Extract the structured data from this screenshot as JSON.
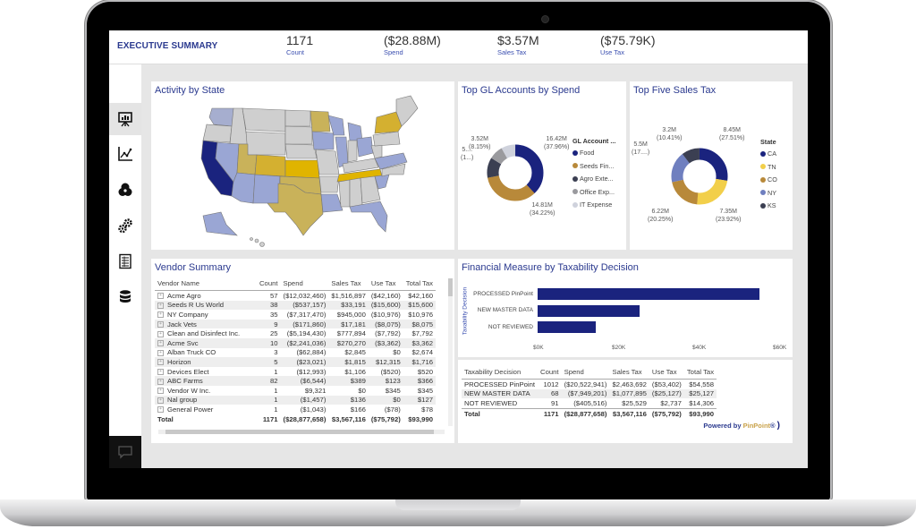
{
  "header": {
    "title": "EXECUTIVE SUMMARY",
    "kpis": [
      {
        "value": "1171",
        "label": "Count"
      },
      {
        "value": "($28.88M)",
        "label": "Spend"
      },
      {
        "value": "$3.57M",
        "label": "Sales Tax"
      },
      {
        "value": "($75.79K)",
        "label": "Use Tax"
      }
    ]
  },
  "sidebar": {
    "items": [
      {
        "icon": "presentation-chart-icon",
        "active": true
      },
      {
        "icon": "line-chart-icon"
      },
      {
        "icon": "venn-diagram-icon"
      },
      {
        "icon": "gears-icon"
      },
      {
        "icon": "checklist-icon"
      },
      {
        "icon": "database-icon"
      }
    ],
    "chat_icon": "chat-icon"
  },
  "map": {
    "title": "Activity by State",
    "colors": {
      "high": "#1a237e",
      "gold": "#d4b030",
      "gold_light": "#c9b25a",
      "blue_light": "#9aa6d4",
      "neutral": "#cfcfcf"
    }
  },
  "gl_accounts": {
    "title": "Top GL Accounts by Spend",
    "legend_title": "GL Account ...",
    "labels": {
      "food": [
        "16.42M",
        "(37.96%)"
      ],
      "seeds": [
        "14.81M",
        "(34.22%)"
      ],
      "agro": [
        "5....",
        "(1...)"
      ],
      "office": [
        "3.52M",
        "(8.15%)"
      ]
    }
  },
  "sales_tax": {
    "title": "Top Five Sales Tax",
    "legend_title": "State",
    "labels": {
      "ca": [
        "8.45M",
        "(27.51%)"
      ],
      "tn": [
        "7.35M",
        "(23.92%)"
      ],
      "co": [
        "6.22M",
        "(20.25%)"
      ],
      "ny": [
        "5.5M",
        "(17....)"
      ],
      "ks": [
        "3.2M",
        "(10.41%)"
      ]
    }
  },
  "vendor_summary": {
    "title": "Vendor Summary",
    "columns": [
      "Vendor Name",
      "Count",
      "Spend",
      "Sales Tax",
      "Use Tax",
      "Total Tax"
    ],
    "rows": [
      [
        "Acme Agro",
        "57",
        "($12,032,460)",
        "$1,516,897",
        "($42,160)",
        "$42,160"
      ],
      [
        "Seeds R Us World",
        "38",
        "($537,157)",
        "$33,191",
        "($15,600)",
        "$15,600"
      ],
      [
        "NY Company",
        "35",
        "($7,317,470)",
        "$945,000",
        "($10,976)",
        "$10,976"
      ],
      [
        "Jack Vets",
        "9",
        "($171,860)",
        "$17,181",
        "($8,075)",
        "$8,075"
      ],
      [
        "Clean and Disinfect Inc.",
        "25",
        "($5,194,430)",
        "$777,894",
        "($7,792)",
        "$7,792"
      ],
      [
        "Acme Svc",
        "10",
        "($2,241,036)",
        "$270,270",
        "($3,362)",
        "$3,362"
      ],
      [
        "Alban Truck CO",
        "3",
        "($62,884)",
        "$2,845",
        "$0",
        "$2,674"
      ],
      [
        "Horizon",
        "5",
        "($23,021)",
        "$1,815",
        "$12,315",
        "$1,716"
      ],
      [
        "Devices Elect",
        "1",
        "($12,993)",
        "$1,106",
        "($520)",
        "$520"
      ],
      [
        "ABC Farms",
        "82",
        "($6,544)",
        "$389",
        "$123",
        "$366"
      ],
      [
        "Vendor W Inc.",
        "1",
        "$9,321",
        "$0",
        "$345",
        "$345"
      ],
      [
        "Nal group",
        "1",
        "($1,457)",
        "$136",
        "$0",
        "$127"
      ],
      [
        "General Power",
        "1",
        "($1,043)",
        "$166",
        "($78)",
        "$78"
      ]
    ],
    "total": [
      "Total",
      "1171",
      "($28,877,658)",
      "$3,567,116",
      "($75,792)",
      "$93,990"
    ]
  },
  "taxability_chart": {
    "title": "Financial Measure by Taxability Decision",
    "y_axis_label": "Taxability Decision",
    "categories": [
      "PROCESSED PinPoint",
      "NEW MASTER DATA",
      "NOT REVIEWED"
    ],
    "ticks": [
      "$0K",
      "$20K",
      "$40K",
      "$60K"
    ]
  },
  "taxability_table": {
    "columns": [
      "Taxability Decision",
      "Count",
      "Spend",
      "Sales Tax",
      "Use Tax",
      "Total Tax"
    ],
    "rows": [
      [
        "PROCESSED PinPoint",
        "1012",
        "($20,522,941)",
        "$2,463,692",
        "($53,402)",
        "$54,558"
      ],
      [
        "NEW MASTER DATA",
        "68",
        "($7,949,201)",
        "$1,077,895",
        "($25,127)",
        "$25,127"
      ],
      [
        "NOT REVIEWED",
        "91",
        "($405,516)",
        "$25,529",
        "$2,737",
        "$14,306"
      ]
    ],
    "total": [
      "Total",
      "1171",
      "($28,877,658)",
      "$3,567,116",
      "($75,792)",
      "$93,990"
    ]
  },
  "footer": {
    "powered_by": "Powered by",
    "brand": "PinPoint"
  },
  "chart_data": [
    {
      "type": "pie",
      "title": "Top GL Accounts by Spend",
      "categories": [
        "Food",
        "Seeds Fin...",
        "Agro Exte...",
        "Office Exp...",
        "IT Expense"
      ],
      "values": [
        16.42,
        14.81,
        5.0,
        3.52,
        3.5
      ],
      "percent": [
        37.96,
        34.22,
        11.6,
        8.15,
        8.07
      ],
      "colors": [
        "#1a237e",
        "#b8893a",
        "#3b3f52",
        "#9a9a9e",
        "#cfd2dc"
      ]
    },
    {
      "type": "pie",
      "title": "Top Five Sales Tax",
      "categories": [
        "CA",
        "TN",
        "CO",
        "NY",
        "KS"
      ],
      "values": [
        8.45,
        7.35,
        6.22,
        5.5,
        3.2
      ],
      "percent": [
        27.51,
        23.92,
        20.25,
        17.91,
        10.41
      ],
      "colors": [
        "#1a237e",
        "#f2cf4a",
        "#b8893a",
        "#6f7fbf",
        "#3b3f52"
      ]
    },
    {
      "type": "bar",
      "orientation": "horizontal",
      "title": "Financial Measure by Taxability Decision",
      "ylabel": "Taxability Decision",
      "categories": [
        "PROCESSED PinPoint",
        "NEW MASTER DATA",
        "NOT REVIEWED"
      ],
      "values": [
        54558,
        25127,
        14306
      ],
      "xlim": [
        0,
        60000
      ],
      "ticks": [
        "$0K",
        "$20K",
        "$40K",
        "$60K"
      ]
    }
  ]
}
